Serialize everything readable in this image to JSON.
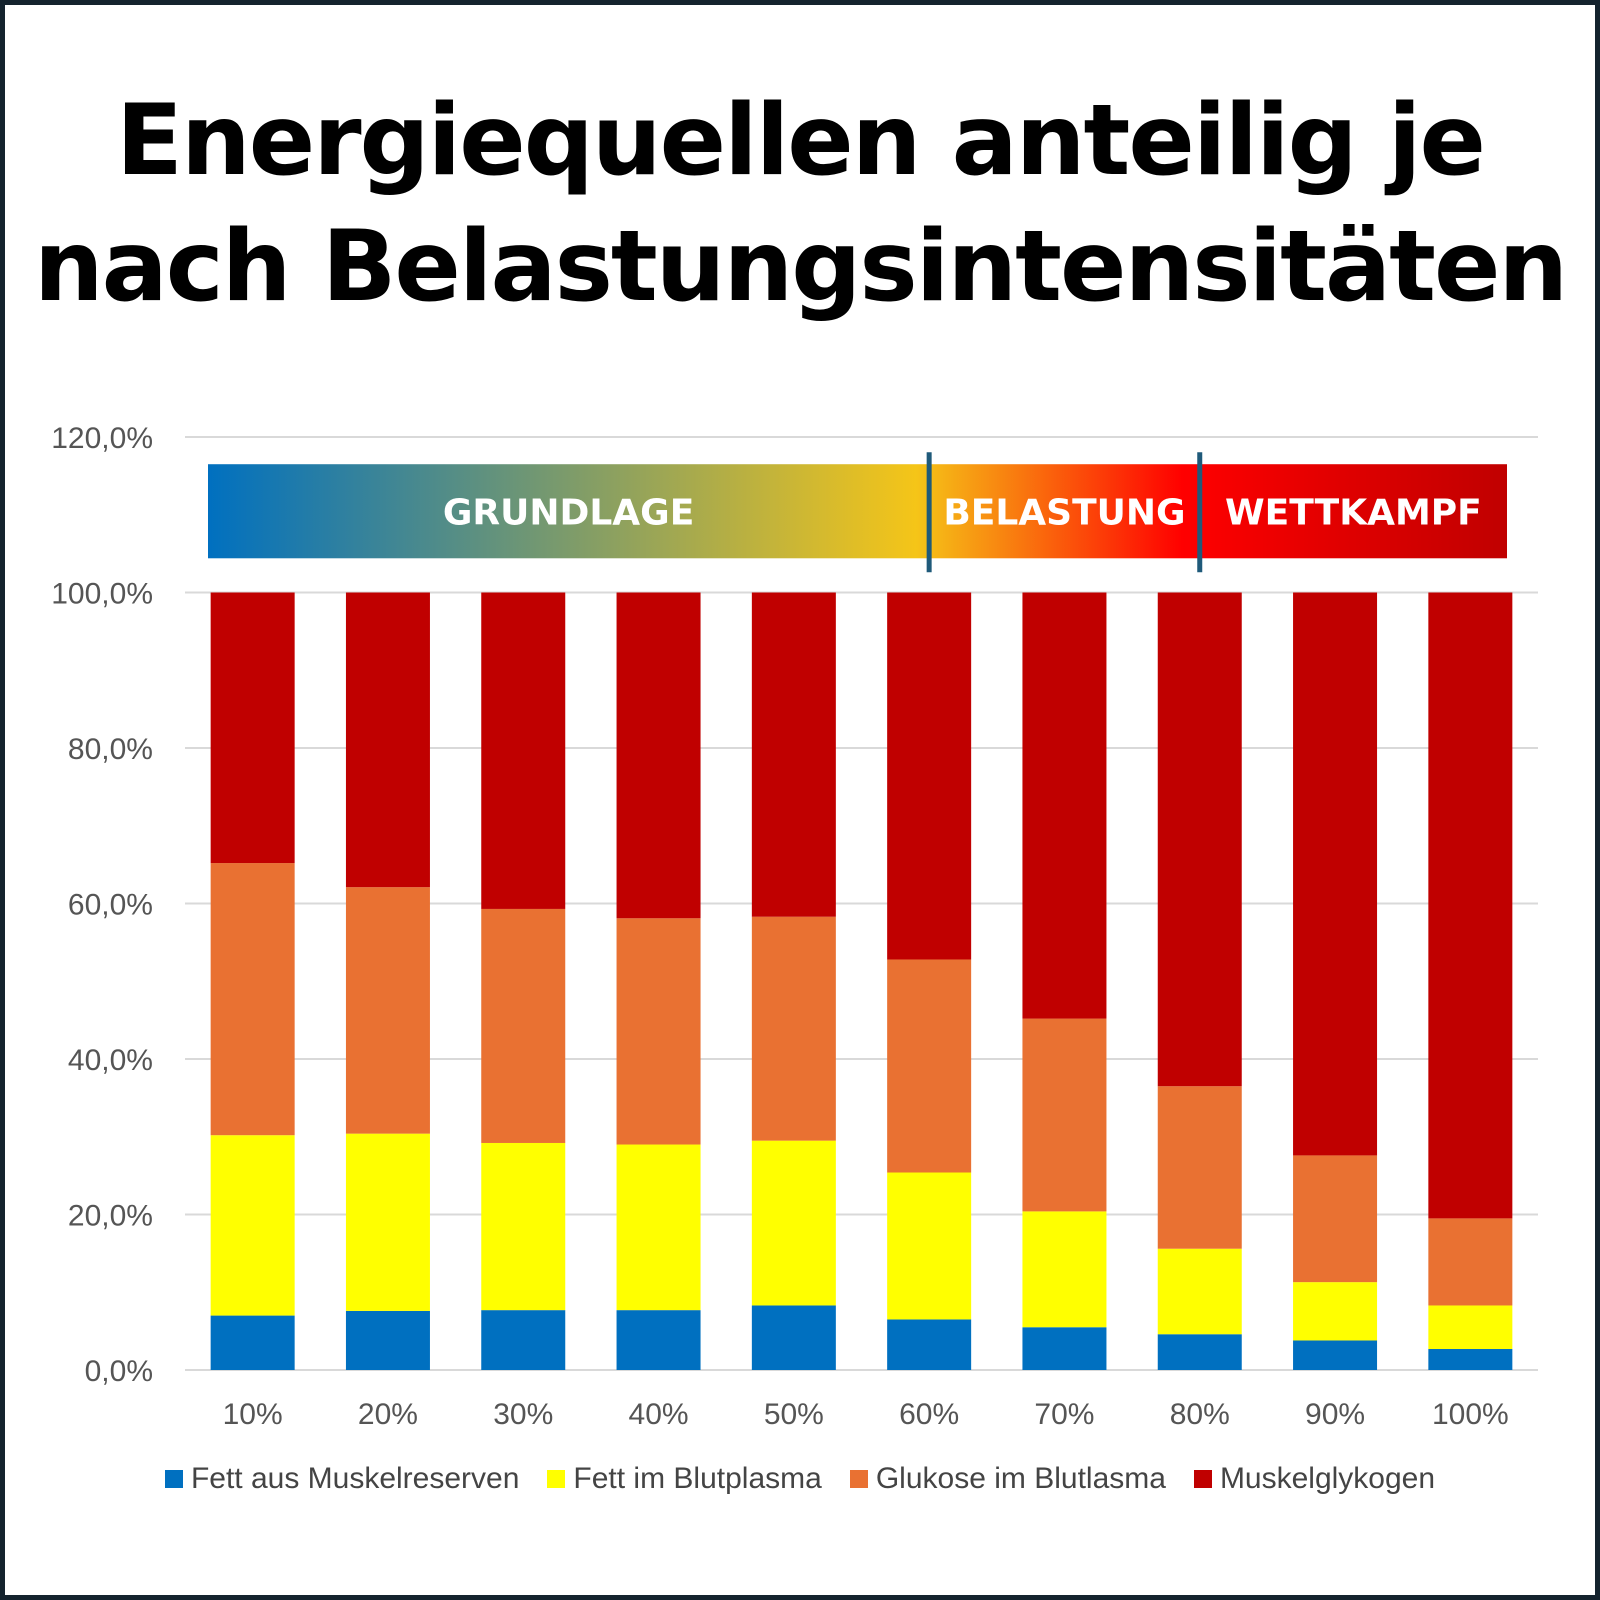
{
  "title": {
    "line1": "Energiequellen anteilig je",
    "line2": "nach Belastungsintensitäten"
  },
  "chart_data": {
    "type": "bar",
    "stacked": true,
    "title": "Energiequellen anteilig je nach Belastungsintensitäten",
    "xlabel": "",
    "ylabel": "",
    "ylim": [
      0,
      120
    ],
    "yticks": [
      "0,0%",
      "20,0%",
      "40,0%",
      "60,0%",
      "80,0%",
      "100,0%",
      "120,0%"
    ],
    "yticks_values": [
      0,
      20,
      40,
      60,
      80,
      100,
      120
    ],
    "grid": true,
    "legend_position": "bottom",
    "categories": [
      "10%",
      "20%",
      "30%",
      "40%",
      "50%",
      "60%",
      "70%",
      "80%",
      "90%",
      "100%"
    ],
    "series": [
      {
        "name": "Fett aus Muskelreserven",
        "color": "#0070c0",
        "values": [
          7.0,
          7.6,
          7.7,
          7.7,
          8.3,
          6.5,
          5.5,
          4.6,
          3.8,
          2.7
        ]
      },
      {
        "name": "Fett im Blutplasma",
        "color": "#ffff00",
        "values": [
          23.2,
          22.8,
          21.5,
          21.3,
          21.2,
          18.9,
          14.9,
          11.0,
          7.5,
          5.6
        ]
      },
      {
        "name": "Glukose im Blutlasma",
        "color": "#e97132",
        "values": [
          35.0,
          31.7,
          30.1,
          29.1,
          28.8,
          27.4,
          24.8,
          20.9,
          16.3,
          11.2
        ]
      },
      {
        "name": "Muskelglykogen",
        "color": "#c00000",
        "values": [
          34.8,
          37.9,
          40.7,
          41.9,
          41.7,
          47.2,
          54.8,
          63.5,
          72.4,
          80.5
        ]
      }
    ],
    "annotations": {
      "band": [
        {
          "label": "GRUNDLAGE",
          "from_category": "10%",
          "to_category": "60%"
        },
        {
          "label": "BELASTUNG",
          "from_category": "60%",
          "to_category": "80%"
        },
        {
          "label": "WETTKAMPF",
          "from_category": "80%",
          "to_category": "100%"
        }
      ],
      "band_colors": [
        "#0070c0",
        "#f5c518",
        "#ff0000",
        "#c00000"
      ],
      "divider_color": "#1f5a7a"
    }
  }
}
